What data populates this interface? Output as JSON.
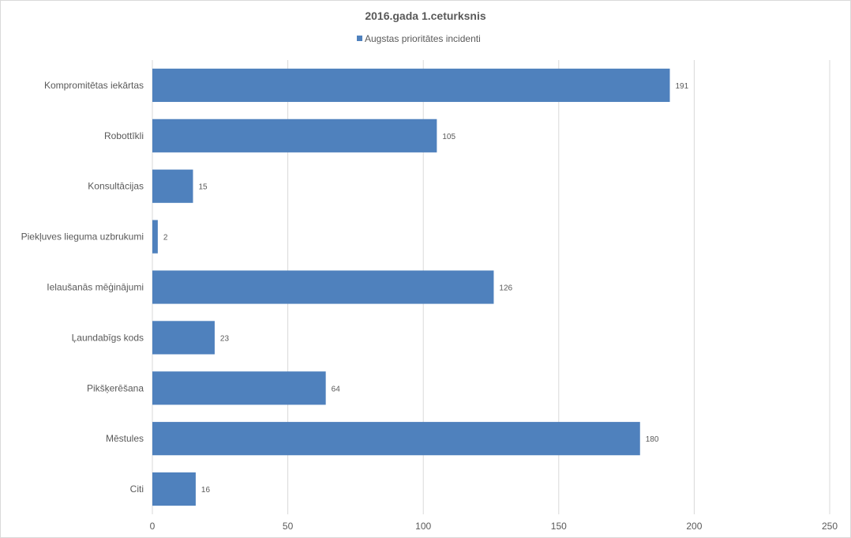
{
  "chart_data": {
    "type": "bar",
    "orientation": "horizontal",
    "title": "2016.gada 1.ceturksnis",
    "categories": [
      "Kompromitētas iekārtas",
      "Robottīkli",
      "Konsultācijas",
      "Piekļuves lieguma uzbrukumi",
      "Ielaušanās mēģinājumi",
      "Ļaundabīgs kods",
      "Pikšķerēšana",
      "Mēstules",
      "Citi"
    ],
    "series": [
      {
        "name": "Augstas prioritātes incidenti",
        "values": [
          191,
          105,
          15,
          2,
          126,
          23,
          64,
          180,
          16
        ],
        "color": "#4f81bd"
      }
    ],
    "xlim": [
      0,
      250
    ],
    "xticks": [
      0,
      50,
      100,
      150,
      200,
      250
    ],
    "grid": true,
    "legend": "top-center",
    "data_labels": true
  }
}
